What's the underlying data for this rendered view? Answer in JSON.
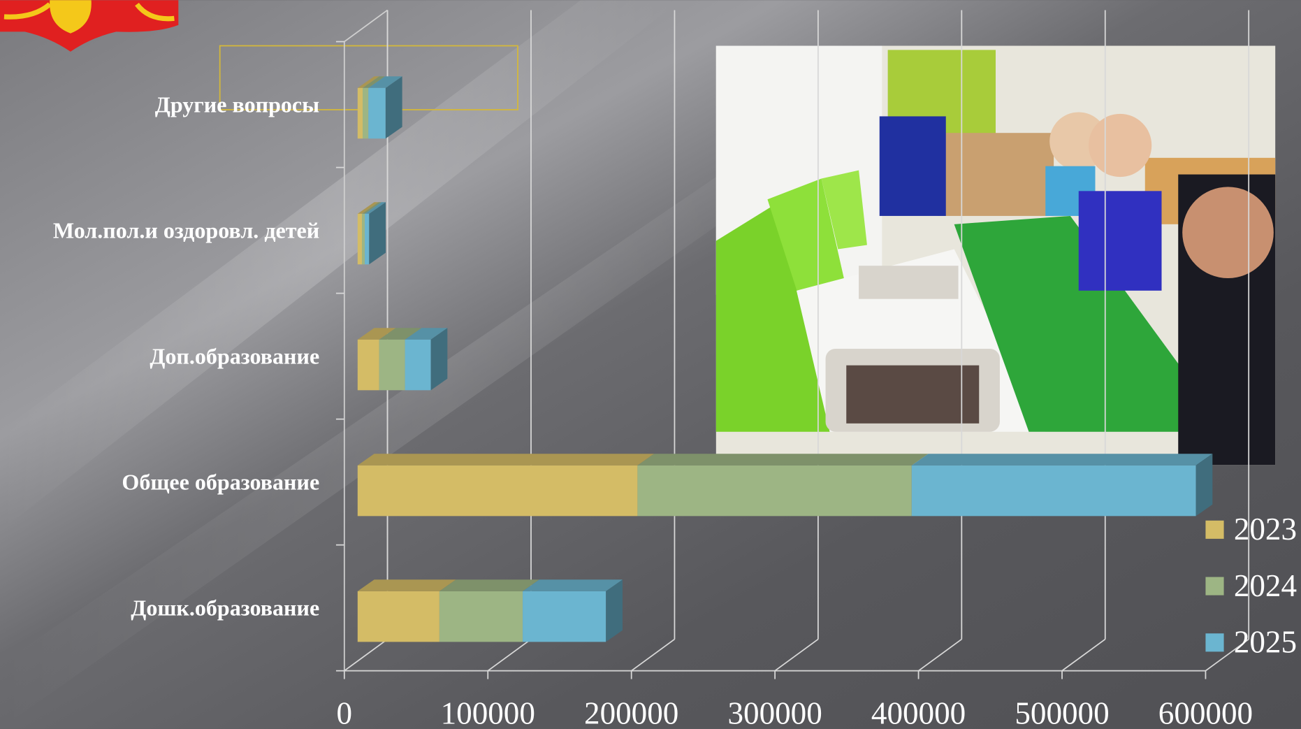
{
  "chart_data": {
    "type": "bar3d_stacked_horizontal",
    "categories": [
      "Другие вопросы",
      "Мол.пол.и оздоровл. детей",
      "Доп.образование",
      "Общее  образование",
      "Дошк.образование"
    ],
    "series": [
      {
        "name": "2023",
        "color": "#d4bc66",
        "values": [
          3500,
          3000,
          15000,
          195000,
          57000
        ]
      },
      {
        "name": "2024",
        "color": "#9db584",
        "values": [
          4000,
          2000,
          18000,
          191000,
          58000
        ]
      },
      {
        "name": "2025",
        "color": "#6bb5d0",
        "values": [
          12000,
          3000,
          18000,
          198000,
          58000
        ]
      }
    ],
    "xlim": [
      0,
      600000
    ],
    "xticks": [
      0,
      100000,
      200000,
      300000,
      400000,
      500000,
      600000
    ],
    "grid": true,
    "legend": "right"
  }
}
